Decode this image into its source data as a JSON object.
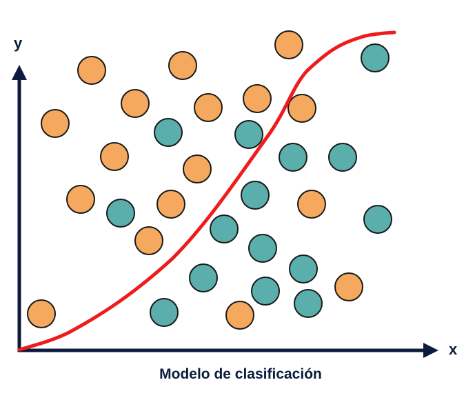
{
  "diagram": {
    "caption": "Modelo de clasificación",
    "x_axis_label": "x",
    "y_axis_label": "y",
    "colors": {
      "axis": "#0d1b3e",
      "boundary": "#ee1c1c",
      "class_orange": "#f4a95f",
      "class_teal": "#5aaeac",
      "outline": "#1a1a1a"
    }
  }
}
